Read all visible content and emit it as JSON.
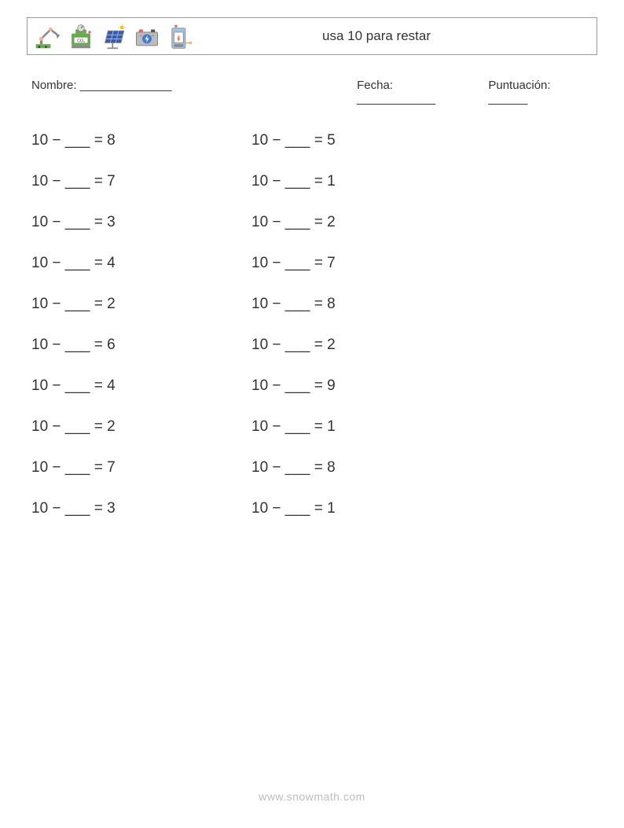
{
  "header": {
    "title": "usa 10 para restar",
    "icons": [
      {
        "name": "robot-arm-icon",
        "colors": {
          "base": "#6aa84f",
          "arm": "#888888",
          "joint": "#f4b183"
        }
      },
      {
        "name": "co2-machine-icon",
        "colors": {
          "body": "#6aa84f",
          "gauge": "#dddddd",
          "accent": "#e06666"
        }
      },
      {
        "name": "solar-panel-icon",
        "colors": {
          "panel": "#3c5aa6",
          "frame": "#888888",
          "sun": "#f1c232"
        }
      },
      {
        "name": "battery-icon",
        "colors": {
          "body": "#bcbcbc",
          "drum": "#3c78d8",
          "bolt": "#555555",
          "plus": "#e06666"
        }
      },
      {
        "name": "heater-icon",
        "colors": {
          "body": "#9fc5e8",
          "frame": "#888888",
          "flame1": "#e06666",
          "flame2": "#f6b26b"
        }
      }
    ]
  },
  "info": {
    "name_label": "Nombre:",
    "name_blank": " ______________",
    "date_label": "Fecha:",
    "date_blank": " ____________",
    "score_label": "Puntuación:",
    "score_blank": " ______"
  },
  "problem_template": {
    "minuend": "10",
    "minus": " − ",
    "blank": "___",
    "equals": " = "
  },
  "problems_grid": {
    "rows": 10,
    "cols": 2,
    "results_col1": [
      "8",
      "7",
      "3",
      "4",
      "2",
      "6",
      "4",
      "2",
      "7",
      "3"
    ],
    "results_col2": [
      "5",
      "1",
      "2",
      "7",
      "8",
      "2",
      "9",
      "1",
      "8",
      "1"
    ]
  },
  "footer": {
    "text": "www.snowmath.com"
  },
  "style": {
    "page_bg": "#ffffff",
    "text_color": "#333333",
    "border_color": "#999999",
    "footer_color": "#bdbdbd",
    "title_fontsize": 17,
    "info_fontsize": 15,
    "problem_fontsize": 19
  }
}
